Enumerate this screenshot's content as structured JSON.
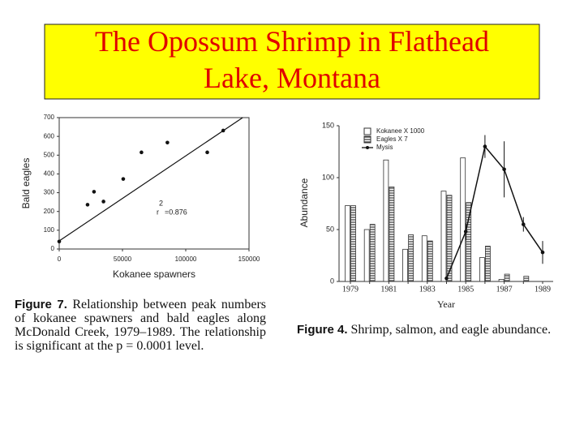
{
  "title": "The Opossum Shrimp in Flathead Lake, Montana",
  "chart_data": [
    {
      "type": "scatter",
      "xlabel": "Kokanee spawners",
      "ylabel": "Bald eagles",
      "x": [
        0,
        22400,
        27500,
        35000,
        50600,
        65000,
        85500,
        117000,
        129600
      ],
      "values": [
        40,
        236,
        305,
        253,
        373,
        515,
        567,
        515,
        631
      ],
      "color": "#111111",
      "trendline": {
        "x": [
          0,
          145000
        ],
        "y": [
          43,
          700
        ]
      },
      "annotation": {
        "base": "r",
        "exponent": "2",
        "text": "=0.876"
      },
      "xlim": [
        0,
        150000
      ],
      "xticks": [
        0,
        50000,
        100000,
        150000
      ],
      "ylim": [
        0,
        700
      ],
      "yticks": [
        0,
        100,
        200,
        300,
        400,
        500,
        600,
        700
      ],
      "caption": {
        "label": "Figure 7.",
        "text": "Relationship between peak numbers of kokanee spawners and bald eagles along McDonald Creek, 1979–1989. The relationship is significant at the p = 0.0001 level."
      }
    },
    {
      "type": "bar",
      "xlabel": "Year",
      "ylabel": "Abundance",
      "categories": [
        "1979",
        null,
        "1981",
        null,
        "1983",
        null,
        "1985",
        null,
        "1987",
        null,
        "1989"
      ],
      "series": [
        {
          "name": "Kokanee X 1000",
          "color": "#ffffff",
          "values": [
            73,
            50,
            117,
            31,
            44,
            87,
            119,
            23,
            2,
            0,
            0
          ]
        },
        {
          "name": "Eagles X 7",
          "color": "#444444",
          "values": [
            73,
            55,
            91,
            45,
            39,
            83,
            76,
            34,
            7,
            5,
            0
          ]
        },
        {
          "name": "Mysis",
          "type": "line",
          "color": "#111111",
          "values": [
            null,
            null,
            null,
            null,
            null,
            3,
            48,
            130,
            108,
            55,
            28
          ],
          "errors": [
            null,
            null,
            null,
            null,
            null,
            null,
            8,
            11,
            27,
            7,
            11
          ]
        }
      ],
      "ylim": [
        0,
        150
      ],
      "yticks": [
        0,
        50,
        100,
        150
      ],
      "legend": "upper-left",
      "caption": {
        "label": "Figure 4.",
        "text": "Shrimp, salmon, and eagle abundance."
      }
    }
  ]
}
